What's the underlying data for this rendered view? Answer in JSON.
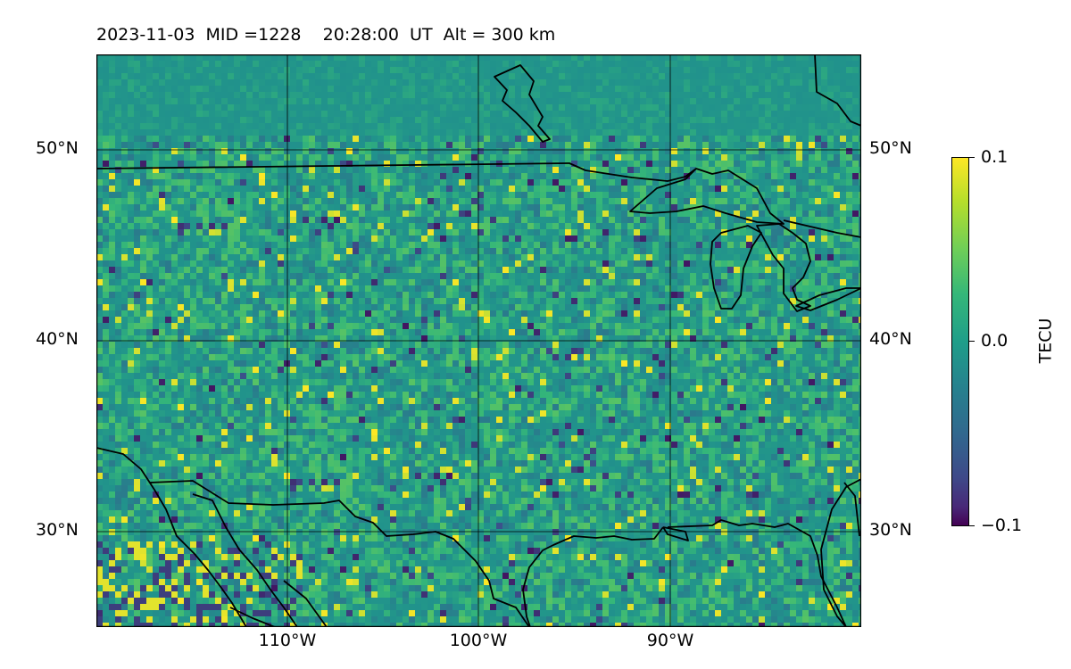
{
  "title": {
    "date": "2023-11-03",
    "mid": "MID =1228",
    "time": "20:28:00  UT",
    "altitude": "Alt = 300 km"
  },
  "map": {
    "lat_labels": [
      "50°N",
      "40°N",
      "30°N"
    ],
    "lon_labels": [
      "110°W",
      "100°W",
      "90°W"
    ],
    "extent": {
      "lon_min": -120,
      "lon_max": -80,
      "lat_min": 25,
      "lat_max": 55
    },
    "gridlines": true
  },
  "colorbar": {
    "label": "TECU",
    "ticks": [
      "0.1",
      "0.0",
      "−0.1"
    ],
    "range": [
      -0.1,
      0.1
    ],
    "colormap": "viridis"
  },
  "colors": {
    "viridis_low": "#440154",
    "viridis_mid": "#21918c",
    "viridis_high": "#fde725",
    "coastline": "#000000"
  }
}
